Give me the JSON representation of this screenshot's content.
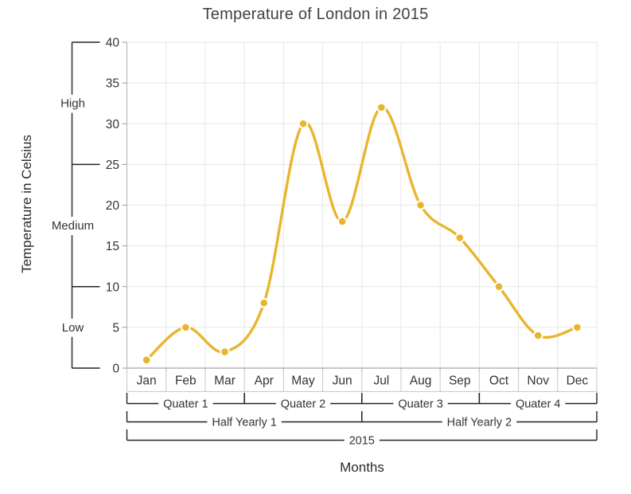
{
  "title": "Temperature of London in 2015",
  "x_axis_title": "Months",
  "y_axis_title": "Temperature in Celsius",
  "colors": {
    "series": "#e8b62e",
    "grid": "#e7e7e7",
    "y_axis_line": "#b5b5b5",
    "x_axis_line": "#8f8f8f",
    "tick": "#9a9a9a",
    "cell_border": "#c9c9c9",
    "bracket": "#222222",
    "label_text": "#333333",
    "title_text": "#424242",
    "marker_ring": "#ffffff"
  },
  "chart_data": {
    "type": "line",
    "curve": "spline",
    "marker": "circle",
    "grid": true,
    "legend": "none",
    "title": "Temperature of London in 2015",
    "xlabel": "Months",
    "ylabel": "Temperature in Celsius",
    "categories": [
      "Jan",
      "Feb",
      "Mar",
      "Apr",
      "May",
      "Jun",
      "Jul",
      "Aug",
      "Sep",
      "Oct",
      "Nov",
      "Dec"
    ],
    "values": [
      1,
      5,
      2,
      8,
      30,
      18,
      32,
      20,
      16,
      10,
      4,
      5
    ],
    "ylim": [
      0,
      40
    ],
    "y_ticks": [
      0,
      5,
      10,
      15,
      20,
      25,
      30,
      35,
      40
    ],
    "y_group_labels": [
      {
        "label": "High",
        "from": 25,
        "to": 40
      },
      {
        "label": "Medium",
        "from": 10,
        "to": 25
      },
      {
        "label": "Low",
        "from": 0,
        "to": 10
      }
    ],
    "x_group_rows": [
      {
        "name": "quarters",
        "groups": [
          {
            "label": "Quater 1",
            "start": 0,
            "end": 3
          },
          {
            "label": "Quater 2",
            "start": 3,
            "end": 6
          },
          {
            "label": "Quater 3",
            "start": 6,
            "end": 9
          },
          {
            "label": "Quater 4",
            "start": 9,
            "end": 12
          }
        ]
      },
      {
        "name": "half-years",
        "groups": [
          {
            "label": "Half Yearly 1",
            "start": 0,
            "end": 6
          },
          {
            "label": "Half Yearly 2",
            "start": 6,
            "end": 12
          }
        ]
      },
      {
        "name": "year",
        "groups": [
          {
            "label": "2015",
            "start": 0,
            "end": 12
          }
        ]
      }
    ]
  }
}
